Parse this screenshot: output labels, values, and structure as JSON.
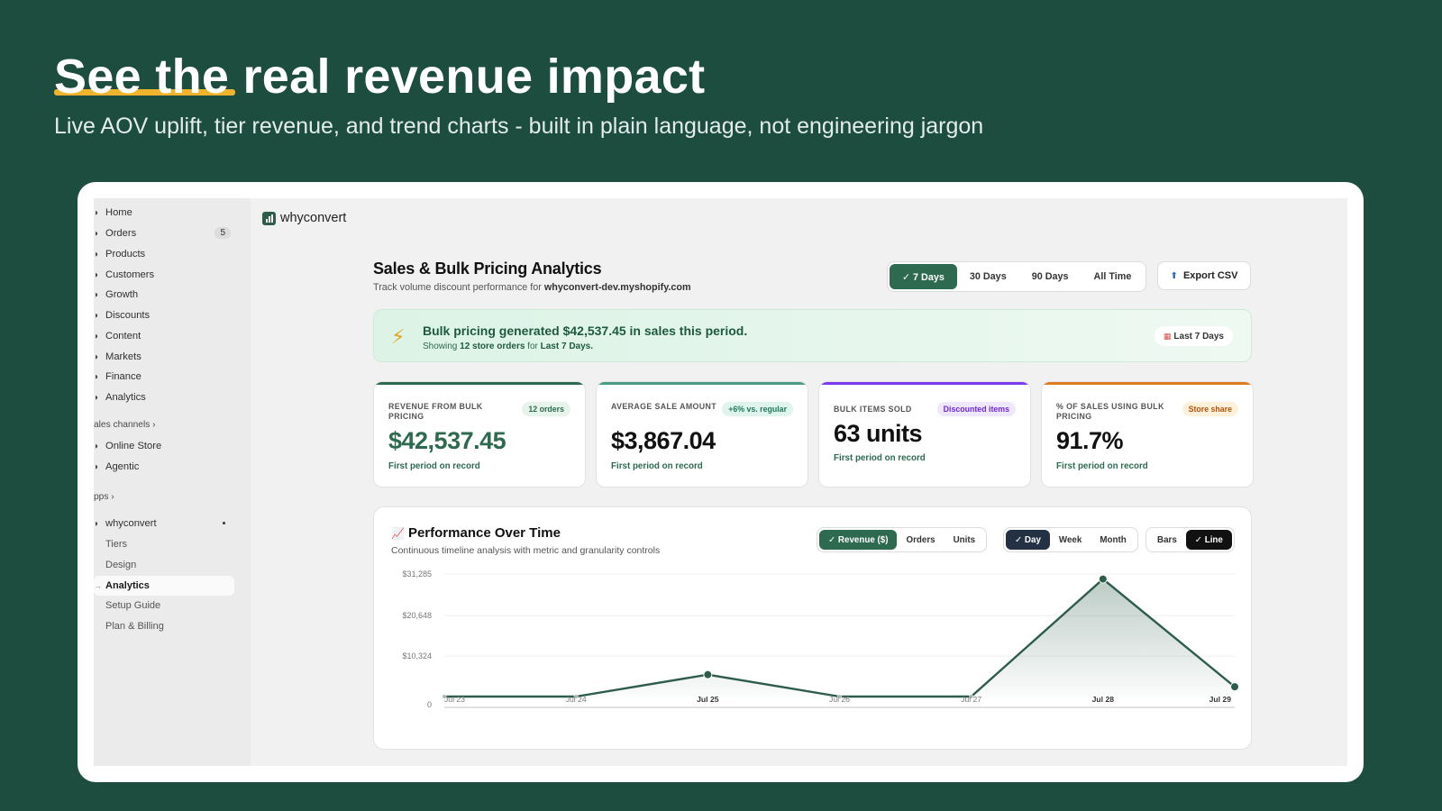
{
  "hero": {
    "title": "See the real revenue impact",
    "subtitle": "Live AOV uplift, tier revenue, and trend charts - built in plain language, not engineering jargon"
  },
  "sidebar": {
    "items": [
      {
        "label": "Home",
        "icon": "home-icon"
      },
      {
        "label": "Orders",
        "icon": "orders-icon",
        "badge": "5"
      },
      {
        "label": "Products",
        "icon": "tag-icon"
      },
      {
        "label": "Customers",
        "icon": "person-icon"
      },
      {
        "label": "Growth",
        "icon": "growth-icon"
      },
      {
        "label": "Discounts",
        "icon": "discount-icon"
      },
      {
        "label": "Content",
        "icon": "content-icon"
      },
      {
        "label": "Markets",
        "icon": "globe-icon"
      },
      {
        "label": "Finance",
        "icon": "bank-icon"
      },
      {
        "label": "Analytics",
        "icon": "chart-bar-icon"
      }
    ],
    "sales_channels_label": "ales channels",
    "channels": [
      {
        "label": "Online Store",
        "icon": "store-icon"
      },
      {
        "label": "Agentic",
        "icon": "agent-icon"
      }
    ],
    "apps_label": "pps",
    "app": {
      "label": "whyconvert",
      "icon": "app-icon"
    },
    "app_subitems": [
      "Tiers",
      "Design",
      "Analytics",
      "Setup Guide",
      "Plan & Billing"
    ]
  },
  "brand": {
    "name": "whyconvert"
  },
  "header": {
    "title": "Sales & Bulk Pricing Analytics",
    "subtitle_prefix": "Track volume discount performance for ",
    "store": "whyconvert-dev.myshopify.com"
  },
  "range_filter": {
    "options": [
      "✓ 7 Days",
      "30 Days",
      "90 Days",
      "All Time"
    ],
    "selected": "✓ 7 Days"
  },
  "export_label": "Export CSV",
  "banner": {
    "title": "Bulk pricing generated $42,537.45 in sales this period.",
    "sub_prefix": "Showing ",
    "sub_orders": "12 store orders",
    "sub_mid": " for ",
    "sub_period": "Last 7 Days.",
    "pill": "Last 7 Days"
  },
  "kpis": [
    {
      "label": "REVENUE FROM BULK PRICING",
      "badge": "12 orders",
      "value": "$42,537.45",
      "note": "First period on record",
      "accent": "#2d6a50",
      "value_color": "#2d6a50",
      "badge_bg": "#e6f4ec",
      "badge_fg": "#2d6a50"
    },
    {
      "label": "AVERAGE SALE AMOUNT",
      "badge": "+6% vs. regular",
      "value": "$3,867.04",
      "note": "First period on record",
      "accent": "#4b9a86",
      "value_color": "#111111",
      "badge_bg": "#dff4ec",
      "badge_fg": "#1f7a5c"
    },
    {
      "label": "BULK ITEMS SOLD",
      "badge": "Discounted items",
      "value": "63 units",
      "note": "First period on record",
      "accent": "#7c3aed",
      "value_color": "#111111",
      "badge_bg": "#efe7fd",
      "badge_fg": "#6d28d9"
    },
    {
      "label": "% OF SALES USING BULK PRICING",
      "badge": "Store share",
      "value": "91.7%",
      "note": "First period on record",
      "accent": "#e07a1f",
      "value_color": "#111111",
      "badge_bg": "#fdf1da",
      "badge_fg": "#b45309"
    }
  ],
  "performance": {
    "title": "Performance Over Time",
    "subtitle": "Continuous timeline analysis with metric and granularity controls",
    "metric_options": [
      "✓ Revenue ($)",
      "Orders",
      "Units"
    ],
    "granularity_options": [
      "✓ Day",
      "Week",
      "Month"
    ],
    "view_options": [
      "Bars",
      "✓ Line"
    ]
  },
  "chart_data": {
    "type": "area",
    "categories": [
      "Jul 23",
      "Jul 24",
      "Jul 25",
      "Jul 26",
      "Jul 27",
      "Jul 28",
      "Jul 29"
    ],
    "values": [
      0,
      0,
      5600,
      0,
      0,
      30000,
      2500
    ],
    "yticks": [
      0,
      10324,
      20648,
      31285
    ],
    "ytick_labels": [
      "0",
      "$10,324",
      "$20,648",
      "$31,285"
    ],
    "ylim": [
      0,
      31285
    ],
    "bold_categories": [
      "Jul 25",
      "Jul 28",
      "Jul 29"
    ],
    "color": "#2d5d4a",
    "grid": true
  }
}
